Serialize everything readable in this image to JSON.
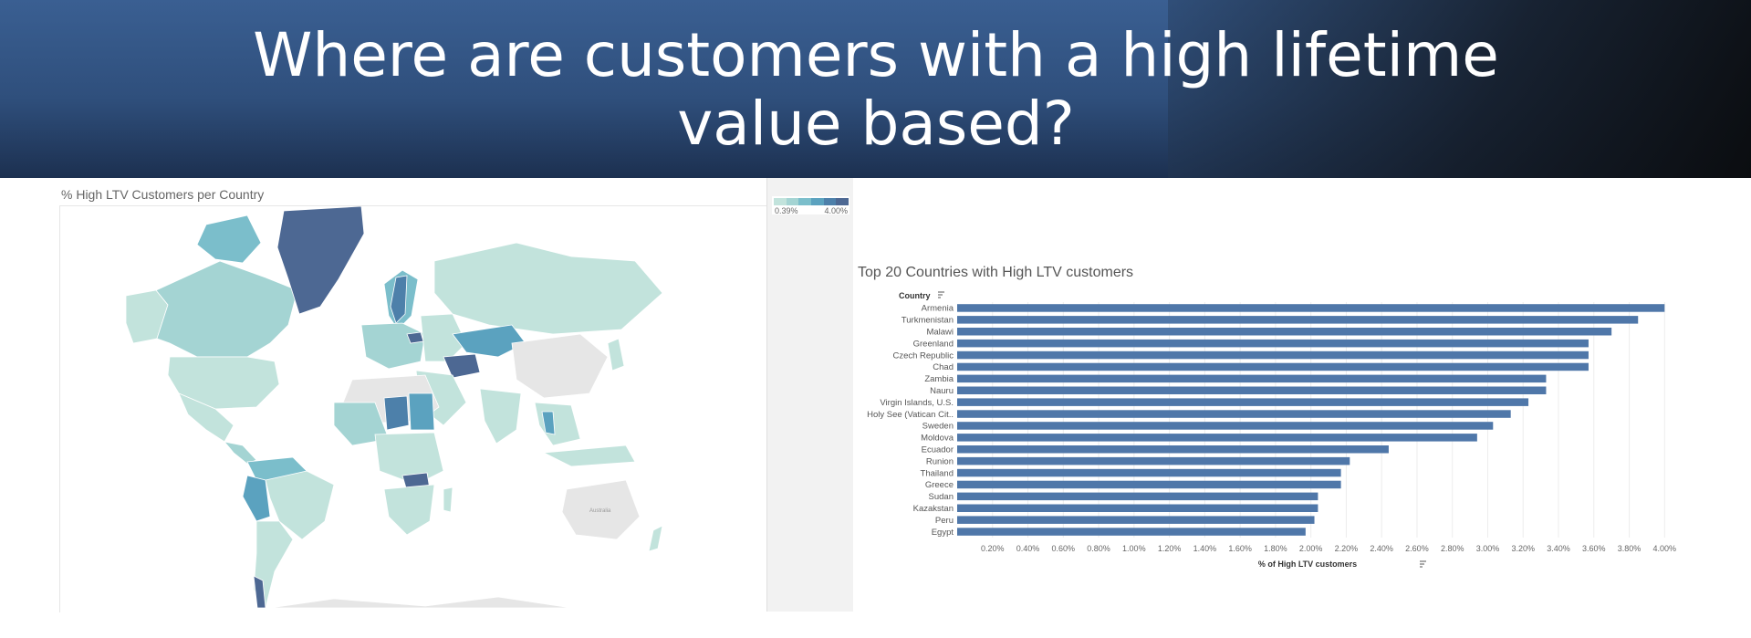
{
  "header": {
    "title": "Where are customers with a high lifetime value based?"
  },
  "map": {
    "title": "% High LTV Customers per Country",
    "legend_min": "0.39%",
    "legend_max": "4.00%",
    "legend_colors": [
      "#c2e3dc",
      "#a4d4d3",
      "#7bbecb",
      "#5ba2bf",
      "#4d80aa",
      "#4d6893"
    ],
    "label_australia": "Australia"
  },
  "colors": {
    "bar": "#4f77a9",
    "banner": "#2f4f7c",
    "grid": "#ededed"
  },
  "chart_data": {
    "type": "bar",
    "orientation": "horizontal",
    "title": "Top 20 Countries with High LTV customers",
    "ylabel": "Country",
    "xlabel": "% of High LTV customers",
    "categories": [
      "Armenia",
      "Turkmenistan",
      "Malawi",
      "Greenland",
      "Czech Republic",
      "Chad",
      "Zambia",
      "Nauru",
      "Virgin Islands, U.S.",
      "Holy See (Vatican Cit..",
      "Sweden",
      "Moldova",
      "Ecuador",
      "Runion",
      "Thailand",
      "Greece",
      "Sudan",
      "Kazakstan",
      "Peru",
      "Egypt"
    ],
    "values": [
      4.0,
      3.85,
      3.7,
      3.57,
      3.57,
      3.57,
      3.33,
      3.33,
      3.23,
      3.13,
      3.03,
      2.94,
      2.44,
      2.22,
      2.17,
      2.17,
      2.04,
      2.04,
      2.02,
      1.97
    ],
    "xlim": [
      0.0,
      4.05
    ],
    "xticks": [
      "0.20%",
      "0.40%",
      "0.60%",
      "0.80%",
      "1.00%",
      "1.20%",
      "1.40%",
      "1.60%",
      "1.80%",
      "2.00%",
      "2.20%",
      "2.40%",
      "2.60%",
      "2.80%",
      "3.00%",
      "3.20%",
      "3.40%",
      "3.60%",
      "3.80%",
      "4.00%"
    ],
    "xtick_values": [
      0.2,
      0.4,
      0.6,
      0.8,
      1.0,
      1.2,
      1.4,
      1.6,
      1.8,
      2.0,
      2.2,
      2.4,
      2.6,
      2.8,
      3.0,
      3.2,
      3.4,
      3.6,
      3.8,
      4.0
    ],
    "grid": true
  }
}
